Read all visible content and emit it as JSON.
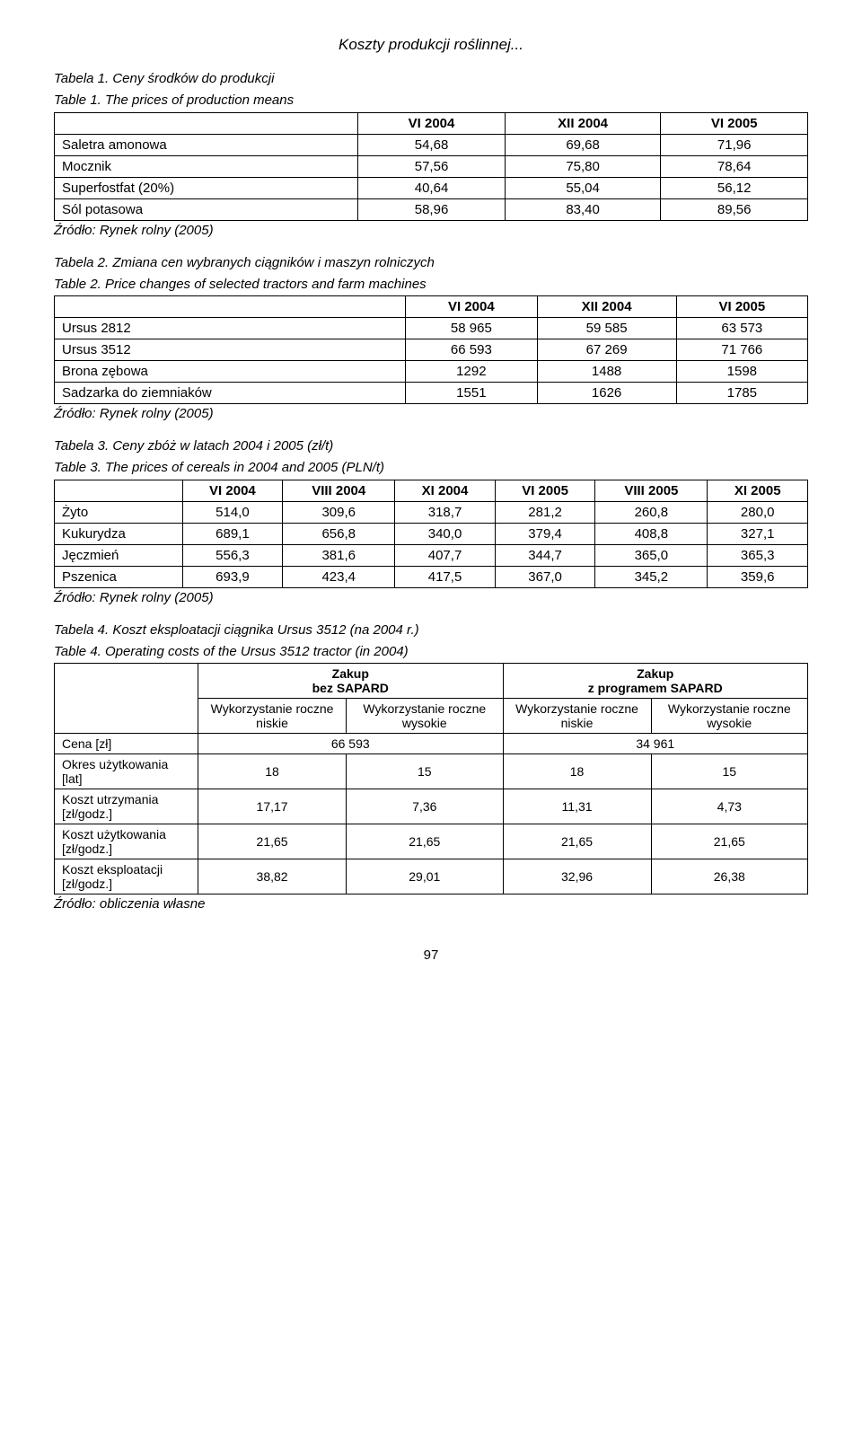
{
  "page_header": "Koszty produkcji roślinnej...",
  "source_label": "Źródło: Rynek rolny (2005)",
  "source_own": "Źródło: obliczenia własne",
  "page_number": "97",
  "table1": {
    "caption_a": "Tabela 1. Ceny środków do produkcji",
    "caption_b": "Table 1. The prices of production means",
    "headers": [
      "",
      "VI 2004",
      "XII 2004",
      "VI 2005"
    ],
    "rows": [
      [
        "Saletra amonowa",
        "54,68",
        "69,68",
        "71,96"
      ],
      [
        "Mocznik",
        "57,56",
        "75,80",
        "78,64"
      ],
      [
        "Superfostfat (20%)",
        "40,64",
        "55,04",
        "56,12"
      ],
      [
        "Sól potasowa",
        "58,96",
        "83,40",
        "89,56"
      ]
    ]
  },
  "table2": {
    "caption_a": "Tabela 2. Zmiana cen wybranych ciągników  i maszyn rolniczych",
    "caption_b": "Table 2. Price changes of selected tractors and farm machines",
    "headers": [
      "",
      "VI 2004",
      "XII 2004",
      "VI 2005"
    ],
    "rows": [
      [
        "Ursus 2812",
        "58 965",
        "59 585",
        "63 573"
      ],
      [
        "Ursus 3512",
        "66 593",
        "67 269",
        "71 766"
      ],
      [
        "Brona zębowa",
        "1292",
        "1488",
        "1598"
      ],
      [
        "Sadzarka do ziemniaków",
        "1551",
        "1626",
        "1785"
      ]
    ]
  },
  "table3": {
    "caption_a": "Tabela 3. Ceny zbóż w latach 2004 i 2005 (zł/t)",
    "caption_b": "Table 3. The prices of cereals in 2004 and 2005 (PLN/t)",
    "headers": [
      "",
      "VI 2004",
      "VIII 2004",
      "XI 2004",
      "VI 2005",
      "VIII 2005",
      "XI 2005"
    ],
    "rows": [
      [
        "Żyto",
        "514,0",
        "309,6",
        "318,7",
        "281,2",
        "260,8",
        "280,0"
      ],
      [
        "Kukurydza",
        "689,1",
        "656,8",
        "340,0",
        "379,4",
        "408,8",
        "327,1"
      ],
      [
        "Jęczmień",
        "556,3",
        "381,6",
        "407,7",
        "344,7",
        "365,0",
        "365,3"
      ],
      [
        "Pszenica",
        "693,9",
        "423,4",
        "417,5",
        "367,0",
        "345,2",
        "359,6"
      ]
    ]
  },
  "table4": {
    "caption_a": "Tabela 4. Koszt eksploatacji ciągnika Ursus 3512 (na 2004 r.)",
    "caption_b": "Table 4. Operating costs of the Ursus 3512 tractor (in 2004)",
    "group1": "Zakup\nbez SAPARD",
    "group2": "Zakup\nz programem SAPARD",
    "sub1": "Wykorzystanie roczne niskie",
    "sub2": "Wykorzystanie roczne wysokie",
    "rows": {
      "cena_label": "Cena [zł]",
      "cena_v1": "66 593",
      "cena_v2": "34 961",
      "okres_label": "Okres użytkowania [lat]",
      "okres": [
        "18",
        "15",
        "18",
        "15"
      ],
      "utrz_label": "Koszt utrzymania [zł/godz.]",
      "utrz": [
        "17,17",
        "7,36",
        "11,31",
        "4,73"
      ],
      "uzytk_label": "Koszt użytkowania [zł/godz.]",
      "uzytk": [
        "21,65",
        "21,65",
        "21,65",
        "21,65"
      ],
      "ekspl_label": "Koszt eksploatacji [zł/godz.]",
      "ekspl": [
        "38,82",
        "29,01",
        "32,96",
        "26,38"
      ]
    }
  }
}
